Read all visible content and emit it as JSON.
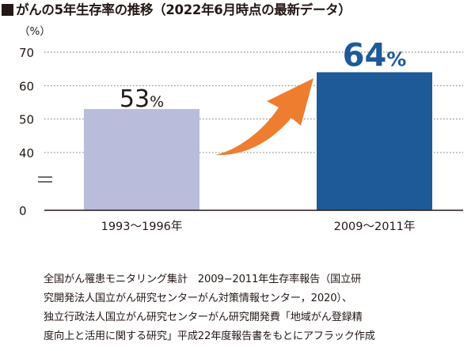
{
  "title": "がんの5年生存率の推移（2022年6月時点の最新データ）",
  "chart_data": {
    "type": "bar",
    "unit_label": "（%）",
    "categories": [
      "1993～1996年",
      "2009～2011年"
    ],
    "values": [
      53,
      64
    ],
    "value_labels": [
      {
        "number": "53",
        "suffix": "%"
      },
      {
        "number": "64",
        "suffix": "%"
      }
    ],
    "y_ticks": [
      "70",
      "60",
      "50",
      "40",
      "0"
    ],
    "ylim": [
      0,
      70
    ],
    "axis_break": true,
    "grid": "dashed horizontal",
    "bar_colors": [
      "#b9bddb",
      "#1e5a98"
    ],
    "highlight_color": "#1e5a98",
    "arrow_color": "#ee7d30"
  },
  "source_lines": [
    "全国がん罹患モニタリング集計　2009−2011年生存率報告（国立研",
    "究開発法人国立がん研究センターがん対策情報センター，2020）、",
    "独立行政法人国立がん研究センターがん研究開発費「地域がん登録精",
    "度向上と活用に関する研究」平成22年度報告書をもとにアフラック作成"
  ]
}
